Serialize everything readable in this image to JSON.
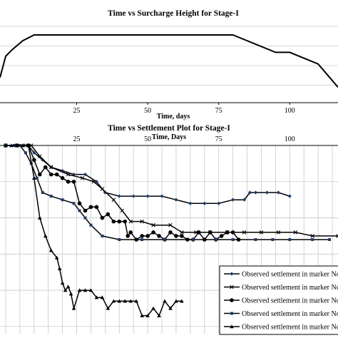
{
  "chart_data": [
    {
      "type": "line",
      "title": "Time vs Surcharge Height for Stage-I",
      "xlabel": "Time, days",
      "ylabel": "",
      "xlim": [
        -2,
        117
      ],
      "ylim": [
        -1,
        3.2
      ],
      "x_ticks": [
        25,
        50,
        75,
        100
      ],
      "grid": "horizontal",
      "series": [
        {
          "name": "",
          "color": "#000000",
          "points": [
            [
              -2,
              0.3
            ],
            [
              0,
              1.4
            ],
            [
              2,
              1.7
            ],
            [
              6,
              2.2
            ],
            [
              10,
              2.5
            ],
            [
              80,
              2.5
            ],
            [
              95,
              1.6
            ],
            [
              100,
              1.6
            ],
            [
              110,
              1.0
            ],
            [
              117,
              -0.2
            ]
          ]
        }
      ]
    },
    {
      "type": "line",
      "title": "Time vs Settlement Plot for Stage-I",
      "xlabel": "Time, Days",
      "ylabel": "",
      "xlim": [
        -2,
        117
      ],
      "ylim": [
        0,
        52
      ],
      "x_ticks": [
        25,
        50,
        75,
        100
      ],
      "grid": "both",
      "legend": "bottom-right",
      "series": [
        {
          "name": "Observed settlement in marker Nc",
          "marker": "diamond",
          "points": [
            [
              0,
              0
            ],
            [
              3,
              0
            ],
            [
              6,
              0
            ],
            [
              8,
              0
            ],
            [
              10,
              2
            ],
            [
              13,
              4
            ],
            [
              16,
              6
            ],
            [
              20,
              7
            ],
            [
              24,
              8
            ],
            [
              28,
              8
            ],
            [
              32,
              10
            ],
            [
              35,
              13
            ],
            [
              40,
              14
            ],
            [
              45,
              14
            ],
            [
              50,
              14
            ],
            [
              55,
              14
            ],
            [
              60,
              15
            ],
            [
              65,
              16
            ],
            [
              70,
              16
            ],
            [
              75,
              16
            ],
            [
              80,
              15
            ],
            [
              84,
              15
            ],
            [
              86,
              13
            ],
            [
              88,
              13
            ],
            [
              92,
              13
            ],
            [
              96,
              13
            ],
            [
              100,
              14
            ]
          ]
        },
        {
          "name": "Observed settlement in marker Nc",
          "marker": "cross",
          "points": [
            [
              0,
              0
            ],
            [
              4,
              0
            ],
            [
              7,
              0
            ],
            [
              9,
              0
            ],
            [
              12,
              3
            ],
            [
              16,
              6
            ],
            [
              22,
              8
            ],
            [
              27,
              9
            ],
            [
              31,
              10
            ],
            [
              34,
              12
            ],
            [
              38,
              15
            ],
            [
              41,
              18
            ],
            [
              44,
              21
            ],
            [
              48,
              21
            ],
            [
              52,
              22
            ],
            [
              58,
              22
            ],
            [
              62,
              24
            ],
            [
              67,
              24
            ],
            [
              72,
              24
            ],
            [
              78,
              24
            ],
            [
              84,
              24
            ],
            [
              90,
              24
            ],
            [
              96,
              24
            ],
            [
              102,
              24
            ],
            [
              108,
              25
            ],
            [
              117,
              25
            ]
          ]
        },
        {
          "name": "Observed settlement in marker Nc",
          "marker": "circle",
          "points": [
            [
              0,
              0
            ],
            [
              4,
              0
            ],
            [
              8,
              0
            ],
            [
              10,
              4
            ],
            [
              12,
              8
            ],
            [
              14,
              6
            ],
            [
              16,
              8
            ],
            [
              18,
              8
            ],
            [
              20,
              9
            ],
            [
              22,
              10
            ],
            [
              24,
              10
            ],
            [
              26,
              16
            ],
            [
              28,
              18
            ],
            [
              30,
              17
            ],
            [
              32,
              17
            ],
            [
              34,
              20
            ],
            [
              36,
              19
            ],
            [
              38,
              21
            ],
            [
              40,
              21
            ],
            [
              42,
              21
            ],
            [
              43,
              25
            ],
            [
              44,
              24
            ],
            [
              46,
              26
            ],
            [
              48,
              25
            ],
            [
              50,
              25
            ],
            [
              52,
              24
            ],
            [
              54,
              25
            ],
            [
              56,
              26
            ],
            [
              58,
              24
            ],
            [
              60,
              25
            ],
            [
              62,
              25
            ],
            [
              64,
              26
            ],
            [
              66,
              26
            ],
            [
              68,
              24
            ],
            [
              70,
              26
            ],
            [
              72,
              24
            ],
            [
              74,
              26
            ],
            [
              76,
              25
            ],
            [
              78,
              24
            ],
            [
              80,
              24
            ],
            [
              82,
              26
            ]
          ]
        },
        {
          "name": "Observed settlement in marker Nc",
          "marker": "square",
          "points": [
            [
              0,
              0
            ],
            [
              3,
              0
            ],
            [
              5,
              0
            ],
            [
              7,
              2
            ],
            [
              9,
              5
            ],
            [
              11,
              9
            ],
            [
              13,
              13
            ],
            [
              16,
              14
            ],
            [
              20,
              15
            ],
            [
              24,
              16
            ],
            [
              26,
              18
            ],
            [
              28,
              20
            ],
            [
              30,
              22
            ],
            [
              34,
              25
            ],
            [
              40,
              26
            ],
            [
              48,
              26
            ],
            [
              56,
              26
            ],
            [
              66,
              26
            ],
            [
              74,
              26
            ],
            [
              80,
              26
            ],
            [
              88,
              26
            ],
            [
              94,
              26
            ],
            [
              100,
              26
            ],
            [
              108,
              26
            ],
            [
              114,
              26
            ]
          ]
        },
        {
          "name": "Observed settlement in marker Nc",
          "marker": "triangle",
          "points": [
            [
              0,
              0
            ],
            [
              2,
              0
            ],
            [
              4,
              0
            ],
            [
              6,
              0
            ],
            [
              8,
              0
            ],
            [
              10,
              9
            ],
            [
              12,
              20
            ],
            [
              14,
              25
            ],
            [
              16,
              29
            ],
            [
              18,
              31
            ],
            [
              19,
              34
            ],
            [
              20,
              38
            ],
            [
              21,
              40
            ],
            [
              22,
              39
            ],
            [
              23,
              41
            ],
            [
              24,
              45
            ],
            [
              26,
              40
            ],
            [
              28,
              40
            ],
            [
              30,
              40
            ],
            [
              32,
              42
            ],
            [
              34,
              42
            ],
            [
              36,
              45
            ],
            [
              38,
              43
            ],
            [
              40,
              43
            ],
            [
              42,
              43
            ],
            [
              44,
              43
            ],
            [
              46,
              43
            ],
            [
              48,
              47
            ],
            [
              50,
              47
            ],
            [
              52,
              45
            ],
            [
              54,
              47
            ],
            [
              56,
              43
            ],
            [
              58,
              45
            ],
            [
              60,
              43
            ],
            [
              62,
              43
            ]
          ]
        }
      ]
    }
  ]
}
